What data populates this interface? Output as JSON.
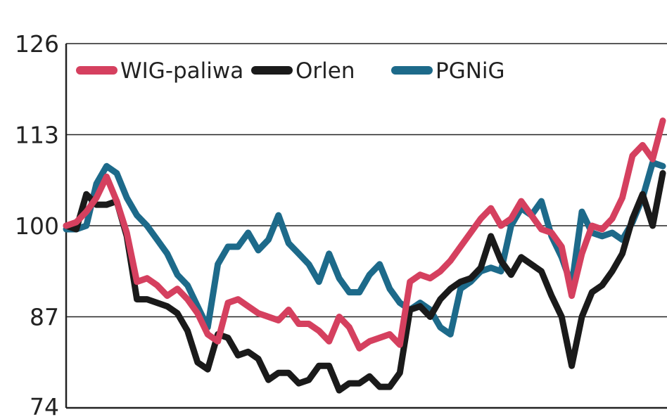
{
  "chart_data": {
    "type": "line",
    "ylim": [
      74,
      126
    ],
    "y_ticks": [
      126,
      113,
      100,
      87,
      74
    ],
    "y_tick_labels": [
      "126",
      "113",
      "100",
      "87",
      "74"
    ],
    "grid": true,
    "legend_position": "top-left",
    "legend": [
      "WIG-paliwa",
      "Orlen",
      "PGNiG"
    ],
    "colors": {
      "WIG-paliwa": "#d5405f",
      "Orlen": "#1a1a1a",
      "PGNiG": "#1d6a8a"
    },
    "series": [
      {
        "name": "WIG-paliwa",
        "values": [
          100,
          100.5,
          102,
          104,
          107,
          103.5,
          99,
          92,
          92.5,
          91.5,
          90,
          91,
          89.5,
          87.5,
          84.5,
          83.5,
          89,
          89.5,
          88.5,
          87.5,
          87,
          86.5,
          88,
          86,
          86,
          85,
          83.5,
          87,
          85.5,
          82.5,
          83.5,
          84,
          84.5,
          83,
          92,
          93,
          92.5,
          93.5,
          95,
          97,
          99,
          101,
          102.5,
          100,
          101,
          103.5,
          101.5,
          99.5,
          99,
          97,
          90,
          96,
          100,
          99.5,
          101,
          104,
          110,
          111.5,
          109.5,
          115
        ]
      },
      {
        "name": "Orlen",
        "values": [
          100,
          99.5,
          104.5,
          103,
          103,
          103.5,
          98.5,
          89.5,
          89.5,
          89,
          88.5,
          87.5,
          85,
          80.5,
          79.5,
          84.5,
          84,
          81.5,
          82,
          81,
          78,
          79,
          79,
          77.5,
          78,
          80,
          80,
          76.5,
          77.5,
          77.5,
          78.5,
          77,
          77,
          79,
          88,
          88.5,
          87,
          89.5,
          91,
          92,
          92.5,
          94,
          98.5,
          95,
          93,
          95.5,
          94.5,
          93.5,
          90,
          87,
          80,
          87,
          90.5,
          91.5,
          93.5,
          96,
          101,
          104.5,
          100,
          107.5
        ]
      },
      {
        "name": "PGNiG",
        "values": [
          99.5,
          99.5,
          100,
          106,
          108.5,
          107.5,
          104,
          101.5,
          100,
          98,
          96,
          93,
          91.5,
          88.5,
          85.5,
          94.5,
          97,
          97,
          99,
          96.5,
          98,
          101.5,
          97.5,
          96,
          94.5,
          92,
          96,
          92.5,
          90.5,
          90.5,
          93,
          94.5,
          91,
          89,
          88,
          89,
          88,
          85.5,
          84.5,
          91,
          92,
          93.5,
          94,
          93.5,
          100,
          102.5,
          101.5,
          103.5,
          98.5,
          95.5,
          91.5,
          102,
          99,
          98.5,
          99,
          98,
          100.5,
          104,
          109,
          108.5
        ]
      }
    ]
  }
}
